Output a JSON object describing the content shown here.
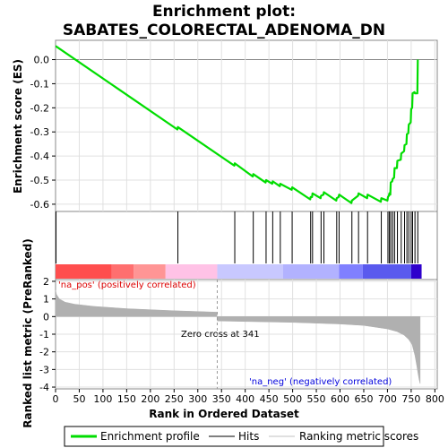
{
  "chart_data": {
    "type": "line",
    "title_line1": "Enrichment plot:",
    "title_line2": "SABATES_COLORECTAL_ADENOMA_DN",
    "es_panel": {
      "ylabel": "Enrichment score (ES)",
      "ylim": [
        -0.63,
        0.08
      ],
      "yticks": [
        0.0,
        -0.1,
        -0.2,
        -0.3,
        -0.4,
        -0.5,
        -0.6
      ],
      "ytick_labels": [
        "0.0",
        "-0.1",
        "-0.2",
        "-0.3",
        "-0.4",
        "-0.5",
        "-0.6"
      ],
      "series": [
        {
          "name": "Enrichment profile",
          "color": "#00dd00",
          "x": [
            0,
            1,
            257,
            258,
            377,
            378,
            416,
            417,
            443,
            444,
            457,
            458,
            473,
            474,
            498,
            499,
            537,
            538,
            541,
            542,
            559,
            560,
            565,
            566,
            592,
            593,
            597,
            598,
            624,
            625,
            638,
            639,
            657,
            658,
            686,
            687,
            700,
            701,
            703,
            704,
            706,
            707,
            710,
            711,
            714,
            715,
            720,
            721,
            728,
            729,
            735,
            736,
            740,
            741,
            744,
            745,
            749,
            750,
            752,
            753,
            757,
            758,
            763,
            764
          ],
          "y": [
            0.055,
            0.055,
            -0.29,
            -0.28,
            -0.44,
            -0.43,
            -0.485,
            -0.475,
            -0.51,
            -0.5,
            -0.515,
            -0.505,
            -0.525,
            -0.515,
            -0.54,
            -0.53,
            -0.58,
            -0.57,
            -0.57,
            -0.555,
            -0.575,
            -0.565,
            -0.56,
            -0.55,
            -0.585,
            -0.575,
            -0.57,
            -0.56,
            -0.595,
            -0.585,
            -0.565,
            -0.555,
            -0.575,
            -0.56,
            -0.59,
            -0.575,
            -0.585,
            -0.57,
            -0.565,
            -0.555,
            -0.56,
            -0.51,
            -0.505,
            -0.495,
            -0.49,
            -0.45,
            -0.45,
            -0.42,
            -0.415,
            -0.39,
            -0.38,
            -0.355,
            -0.35,
            -0.31,
            -0.305,
            -0.27,
            -0.26,
            -0.205,
            -0.2,
            -0.14,
            -0.135,
            -0.14,
            -0.14,
            0.0
          ]
        }
      ],
      "baseline": 0.0
    },
    "hits_panel": {
      "hit_positions": [
        1,
        258,
        378,
        417,
        444,
        458,
        474,
        499,
        538,
        542,
        560,
        566,
        593,
        598,
        625,
        639,
        658,
        687,
        701,
        704,
        707,
        711,
        715,
        721,
        729,
        736,
        741,
        745,
        750,
        753,
        758,
        764
      ],
      "heat_bands": [
        {
          "from": 0,
          "to": 118,
          "color": "#ff4e4e"
        },
        {
          "from": 118,
          "to": 165,
          "color": "#ff6f6f"
        },
        {
          "from": 165,
          "to": 232,
          "color": "#ff9595"
        },
        {
          "from": 232,
          "to": 341,
          "color": "#ffc2e6"
        },
        {
          "from": 341,
          "to": 480,
          "color": "#c8c8ff"
        },
        {
          "from": 480,
          "to": 598,
          "color": "#b2b2ff"
        },
        {
          "from": 598,
          "to": 648,
          "color": "#8080ff"
        },
        {
          "from": 648,
          "to": 750,
          "color": "#5a5aee"
        },
        {
          "from": 750,
          "to": 772,
          "color": "#2e00cc"
        }
      ]
    },
    "metric_panel": {
      "ylabel": "Ranked list metric (PreRanked)",
      "ylim": [
        -4.1,
        2.1
      ],
      "yticks": [
        2,
        1,
        0,
        -1,
        -2,
        -3,
        -4
      ],
      "ytick_labels": [
        "2",
        "1",
        "0",
        "-1",
        "-2",
        "-3",
        "-4"
      ],
      "color": "#b0b0b0",
      "x": [
        0,
        2,
        8,
        20,
        40,
        80,
        150,
        250,
        340,
        341,
        400,
        500,
        600,
        650,
        700,
        720,
        735,
        745,
        752,
        758,
        762,
        765,
        767,
        769
      ],
      "values": [
        1.5,
        1.25,
        1.0,
        0.82,
        0.7,
        0.58,
        0.45,
        0.33,
        0.25,
        -0.25,
        -0.28,
        -0.33,
        -0.42,
        -0.5,
        -0.7,
        -0.85,
        -1.05,
        -1.3,
        -1.6,
        -2.2,
        -2.8,
        -3.3,
        -3.6,
        -3.8
      ],
      "label_pos": "'na_pos' (positively correlated)",
      "label_neg": "'na_neg' (negatively correlated)",
      "zero_cross_label": "Zero cross at 341",
      "zero_cross_rank": 341
    },
    "xaxis": {
      "label": "Rank in Ordered Dataset",
      "xlim": [
        0,
        805
      ],
      "ticks": [
        0,
        50,
        100,
        150,
        200,
        250,
        300,
        350,
        400,
        450,
        500,
        550,
        600,
        650,
        700,
        750,
        800
      ],
      "tick_labels": [
        "0",
        "50",
        "100",
        "150",
        "200",
        "250",
        "300",
        "350",
        "400",
        "450",
        "500",
        "550",
        "600",
        "650",
        "700",
        "750",
        "800"
      ],
      "list_length": 772
    },
    "legend": {
      "placement": "bottom",
      "items": [
        {
          "label": "Enrichment profile",
          "color": "#00dd00",
          "kind": "thick-line"
        },
        {
          "label": "Hits",
          "color": "#000000",
          "kind": "thin-line"
        },
        {
          "label": "Ranking metric scores",
          "color": "#c0c0c0",
          "kind": "thin-line"
        }
      ]
    },
    "colors": {
      "pos_label": "#dd0000",
      "neg_label": "#0000dd",
      "zero_cross": "#000000",
      "grid": "#e0e0e0"
    }
  }
}
